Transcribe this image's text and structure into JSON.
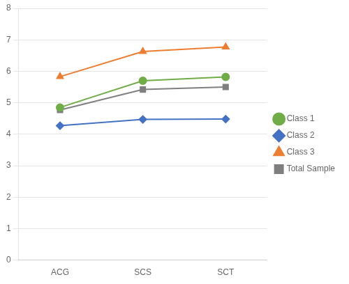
{
  "chart_data": {
    "type": "line",
    "categories": [
      "ACG",
      "SCS",
      "SCT"
    ],
    "series": [
      {
        "name": "Class 1",
        "color": "#70ad47",
        "marker": "circle",
        "values": [
          4.85,
          5.7,
          5.82
        ]
      },
      {
        "name": "Class 2",
        "color": "#4472c4",
        "marker": "diamond",
        "values": [
          4.27,
          4.47,
          4.48
        ]
      },
      {
        "name": "Class 3",
        "color": "#ed7d31",
        "marker": "triangle",
        "values": [
          5.83,
          6.63,
          6.77
        ]
      },
      {
        "name": "Total Sample",
        "color": "#7f7f7f",
        "marker": "square",
        "values": [
          4.77,
          5.42,
          5.5
        ]
      }
    ],
    "ylim": [
      0,
      8
    ],
    "yticks": [
      0,
      1,
      2,
      3,
      4,
      5,
      6,
      7,
      8
    ],
    "grid": true,
    "legend": "right"
  }
}
